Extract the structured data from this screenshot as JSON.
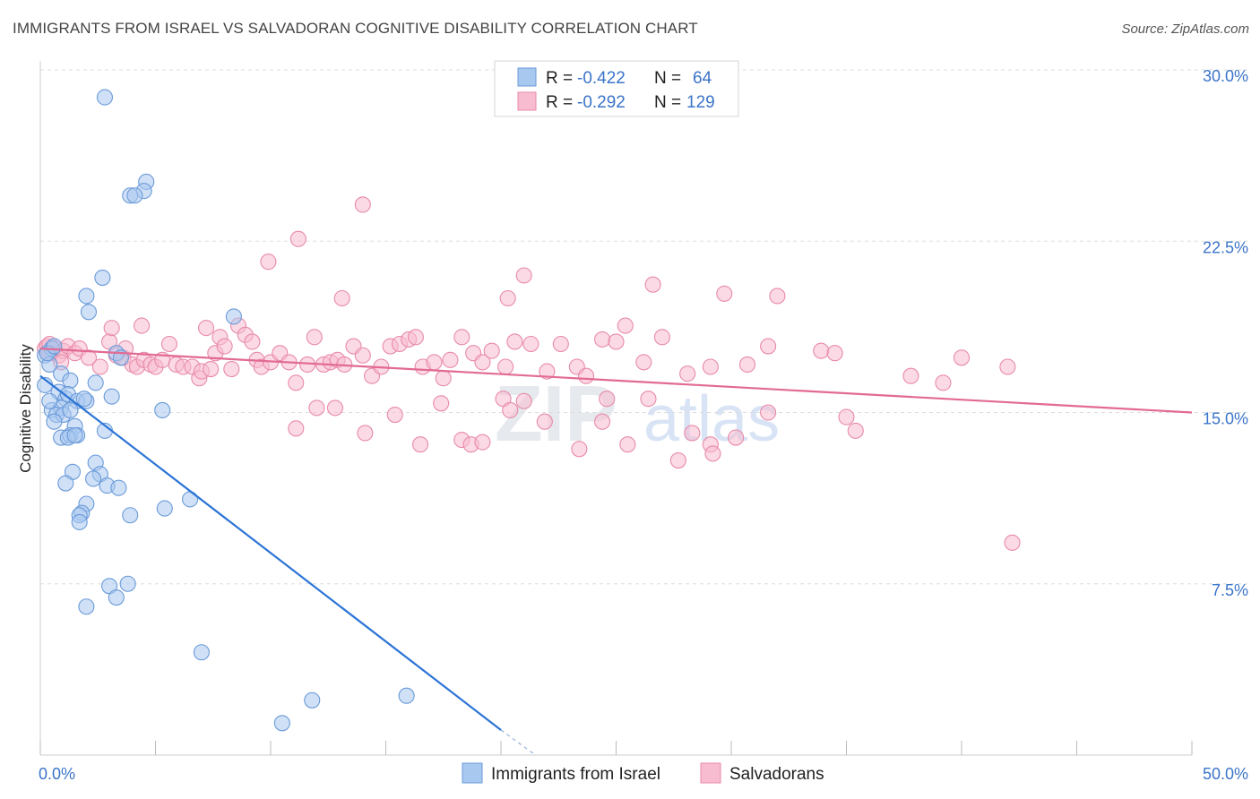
{
  "title": "IMMIGRANTS FROM ISRAEL VS SALVADORAN COGNITIVE DISABILITY CORRELATION CHART",
  "source": "Source: ZipAtlas.com",
  "watermark": {
    "zip": "ZIP",
    "atlas": "atlas"
  },
  "legend_top": [
    {
      "r_label": "R =",
      "r": "-0.422",
      "n_label": "N =",
      "n": "64",
      "color": "#a9c8f0",
      "stroke": "#6a9ad8"
    },
    {
      "r_label": "R =",
      "r": "-0.292",
      "n_label": "N =",
      "n": "129",
      "color": "#f7bcd0",
      "stroke": "#e88aa9"
    }
  ],
  "legend_bottom": [
    {
      "label": "Immigrants from Israel",
      "color": "#a9c8f0",
      "stroke": "#6a9ad8"
    },
    {
      "label": "Salvadorans",
      "color": "#f7bcd0",
      "stroke": "#e88aa9"
    }
  ],
  "chart_data": {
    "type": "scatter",
    "title": "IMMIGRANTS FROM ISRAEL VS SALVADORAN COGNITIVE DISABILITY CORRELATION CHART",
    "xlabel": "",
    "ylabel": "Cognitive Disability",
    "xlim": [
      0,
      50
    ],
    "ylim": [
      0,
      30
    ],
    "x_tick_labels": [
      "0.0%",
      "50.0%"
    ],
    "y_ticks": [
      7.5,
      15.0,
      22.5,
      30.0
    ],
    "y_tick_labels": [
      "7.5%",
      "15.0%",
      "22.5%",
      "30.0%"
    ],
    "series": [
      {
        "name": "Immigrants from Israel",
        "color": "#a9c8f0",
        "stroke": "#6a9ad8",
        "line_color": "#2b74d6",
        "trend": {
          "x0": 0,
          "y0": 16.6,
          "x1": 20,
          "y1": 1.1,
          "dash_to_x": 21.5,
          "dash_to_y": 0
        },
        "points": [
          [
            2.8,
            28.8
          ],
          [
            4.6,
            25.1
          ],
          [
            4.5,
            24.7
          ],
          [
            3.9,
            24.5
          ],
          [
            4.1,
            24.5
          ],
          [
            2.7,
            20.9
          ],
          [
            2.0,
            20.1
          ],
          [
            2.1,
            19.4
          ],
          [
            8.4,
            19.2
          ],
          [
            3.3,
            17.6
          ],
          [
            0.2,
            17.5
          ],
          [
            0.4,
            17.1
          ],
          [
            0.5,
            17.8
          ],
          [
            0.3,
            17.6
          ],
          [
            0.9,
            16.7
          ],
          [
            1.3,
            16.4
          ],
          [
            2.4,
            16.3
          ],
          [
            0.8,
            15.9
          ],
          [
            1.1,
            15.6
          ],
          [
            1.2,
            15.8
          ],
          [
            1.6,
            15.5
          ],
          [
            2.0,
            15.5
          ],
          [
            3.1,
            15.7
          ],
          [
            0.5,
            15.1
          ],
          [
            0.9,
            15.2
          ],
          [
            0.7,
            14.9
          ],
          [
            1.0,
            14.9
          ],
          [
            1.3,
            15.1
          ],
          [
            5.3,
            15.1
          ],
          [
            0.6,
            14.6
          ],
          [
            1.5,
            14.4
          ],
          [
            2.8,
            14.2
          ],
          [
            0.9,
            13.9
          ],
          [
            1.3,
            14.0
          ],
          [
            1.6,
            14.0
          ],
          [
            1.2,
            13.9
          ],
          [
            1.5,
            14.0
          ],
          [
            2.4,
            12.8
          ],
          [
            1.4,
            12.4
          ],
          [
            2.6,
            12.3
          ],
          [
            2.3,
            12.1
          ],
          [
            1.1,
            11.9
          ],
          [
            2.9,
            11.8
          ],
          [
            3.4,
            11.7
          ],
          [
            6.5,
            11.2
          ],
          [
            2.0,
            11.0
          ],
          [
            5.4,
            10.8
          ],
          [
            1.8,
            10.6
          ],
          [
            1.7,
            10.5
          ],
          [
            3.9,
            10.5
          ],
          [
            1.7,
            10.2
          ],
          [
            3.0,
            7.4
          ],
          [
            3.8,
            7.5
          ],
          [
            3.3,
            6.9
          ],
          [
            2.0,
            6.5
          ],
          [
            7.0,
            4.5
          ],
          [
            11.8,
            2.4
          ],
          [
            15.9,
            2.6
          ],
          [
            10.5,
            1.4
          ],
          [
            3.5,
            17.4
          ],
          [
            0.2,
            16.2
          ],
          [
            0.6,
            17.9
          ],
          [
            1.9,
            15.6
          ],
          [
            0.4,
            15.5
          ]
        ]
      },
      {
        "name": "Salvadorans",
        "color": "#f7bcd0",
        "stroke": "#e88aa9",
        "line_color": "#e26a93",
        "trend": {
          "x0": 0,
          "y0": 17.8,
          "x1": 50,
          "y1": 15.0
        },
        "points": [
          [
            0.2,
            17.8
          ],
          [
            0.3,
            17.9
          ],
          [
            0.4,
            18.0
          ],
          [
            0.5,
            17.6
          ],
          [
            0.6,
            17.8
          ],
          [
            0.8,
            17.5
          ],
          [
            1.0,
            17.7
          ],
          [
            1.2,
            17.9
          ],
          [
            1.5,
            17.6
          ],
          [
            1.7,
            17.8
          ],
          [
            0.9,
            17.2
          ],
          [
            0.4,
            17.6
          ],
          [
            2.1,
            17.4
          ],
          [
            2.6,
            17.0
          ],
          [
            3.0,
            18.1
          ],
          [
            3.1,
            18.7
          ],
          [
            3.3,
            17.5
          ],
          [
            3.6,
            17.4
          ],
          [
            3.7,
            17.8
          ],
          [
            4.0,
            17.1
          ],
          [
            4.2,
            17.0
          ],
          [
            4.4,
            18.8
          ],
          [
            4.5,
            17.3
          ],
          [
            4.8,
            17.1
          ],
          [
            5.0,
            17.0
          ],
          [
            5.3,
            17.3
          ],
          [
            5.6,
            18.0
          ],
          [
            5.9,
            17.1
          ],
          [
            6.2,
            17.0
          ],
          [
            6.6,
            17.0
          ],
          [
            6.9,
            16.5
          ],
          [
            7.0,
            16.8
          ],
          [
            7.2,
            18.7
          ],
          [
            7.4,
            16.9
          ],
          [
            7.6,
            17.6
          ],
          [
            7.8,
            18.3
          ],
          [
            8.0,
            17.9
          ],
          [
            8.3,
            16.9
          ],
          [
            8.6,
            18.8
          ],
          [
            8.9,
            18.4
          ],
          [
            9.2,
            18.1
          ],
          [
            9.4,
            17.3
          ],
          [
            9.6,
            17.0
          ],
          [
            10.0,
            17.2
          ],
          [
            10.4,
            17.6
          ],
          [
            10.8,
            17.2
          ],
          [
            11.1,
            16.3
          ],
          [
            11.6,
            17.1
          ],
          [
            11.9,
            18.3
          ],
          [
            12.3,
            17.1
          ],
          [
            12.6,
            17.2
          ],
          [
            12.9,
            17.3
          ],
          [
            13.2,
            17.1
          ],
          [
            13.6,
            17.9
          ],
          [
            14.0,
            17.5
          ],
          [
            14.4,
            16.6
          ],
          [
            14.8,
            17.0
          ],
          [
            15.2,
            17.9
          ],
          [
            15.6,
            18.0
          ],
          [
            16.0,
            18.2
          ],
          [
            16.3,
            18.3
          ],
          [
            16.6,
            17.0
          ],
          [
            17.1,
            17.2
          ],
          [
            17.5,
            16.5
          ],
          [
            17.8,
            17.3
          ],
          [
            18.3,
            18.3
          ],
          [
            18.8,
            17.6
          ],
          [
            19.2,
            17.2
          ],
          [
            19.6,
            17.7
          ],
          [
            20.2,
            17.0
          ],
          [
            20.6,
            18.1
          ],
          [
            21.3,
            18.0
          ],
          [
            22.0,
            16.8
          ],
          [
            22.6,
            18.0
          ],
          [
            23.3,
            17.0
          ],
          [
            23.7,
            16.6
          ],
          [
            24.4,
            18.2
          ],
          [
            25.0,
            18.1
          ],
          [
            25.4,
            18.8
          ],
          [
            26.2,
            17.2
          ],
          [
            27.0,
            18.3
          ],
          [
            28.1,
            16.7
          ],
          [
            29.1,
            17.0
          ],
          [
            30.7,
            17.1
          ],
          [
            31.6,
            17.9
          ],
          [
            33.9,
            17.7
          ],
          [
            34.5,
            17.6
          ],
          [
            40.0,
            17.4
          ],
          [
            42.0,
            17.0
          ],
          [
            11.1,
            14.3
          ],
          [
            12.0,
            15.2
          ],
          [
            12.8,
            15.2
          ],
          [
            14.1,
            14.1
          ],
          [
            15.4,
            14.9
          ],
          [
            16.5,
            13.6
          ],
          [
            17.4,
            15.4
          ],
          [
            18.3,
            13.8
          ],
          [
            18.7,
            13.6
          ],
          [
            19.2,
            13.7
          ],
          [
            20.1,
            15.6
          ],
          [
            20.4,
            15.1
          ],
          [
            21.0,
            15.5
          ],
          [
            21.9,
            14.6
          ],
          [
            23.4,
            13.4
          ],
          [
            24.4,
            14.6
          ],
          [
            24.6,
            15.6
          ],
          [
            25.5,
            13.6
          ],
          [
            26.4,
            15.6
          ],
          [
            27.7,
            12.9
          ],
          [
            28.3,
            14.1
          ],
          [
            29.1,
            13.6
          ],
          [
            29.2,
            13.2
          ],
          [
            30.2,
            13.9
          ],
          [
            31.6,
            15.0
          ],
          [
            35.0,
            14.8
          ],
          [
            35.4,
            14.2
          ],
          [
            37.8,
            16.6
          ],
          [
            39.2,
            16.3
          ],
          [
            42.2,
            9.3
          ],
          [
            14.0,
            24.1
          ],
          [
            11.2,
            22.6
          ],
          [
            9.9,
            21.6
          ],
          [
            13.1,
            20.0
          ],
          [
            20.3,
            20.0
          ],
          [
            21.0,
            21.0
          ],
          [
            26.6,
            20.6
          ],
          [
            29.7,
            20.2
          ],
          [
            32.0,
            20.1
          ]
        ]
      }
    ]
  }
}
